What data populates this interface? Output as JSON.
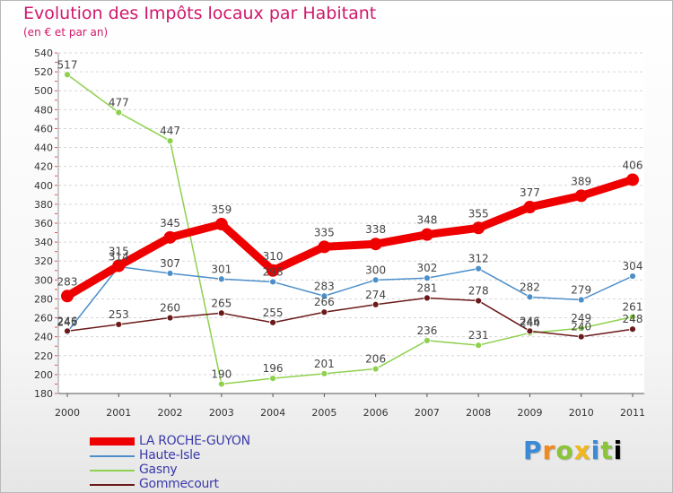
{
  "chart_data": {
    "type": "line",
    "title": "Evolution des Impôts locaux par Habitant",
    "subtitle": "(en € et par an)",
    "xlabel": "",
    "ylabel": "",
    "categories": [
      "2000",
      "2001",
      "2002",
      "2003",
      "2004",
      "2005",
      "2006",
      "2007",
      "2008",
      "2009",
      "2010",
      "2011"
    ],
    "ylim": [
      180,
      540
    ],
    "ytick_step": 20,
    "grid": "horizontal dashed",
    "legend_position": "bottom-left",
    "series": [
      {
        "name": "LA ROCHE-GUYON",
        "color": "#ee0000",
        "width": 9,
        "marker": 7,
        "values": [
          283,
          315,
          345,
          359,
          310,
          335,
          338,
          348,
          355,
          377,
          389,
          406
        ]
      },
      {
        "name": "Haute-Isle",
        "color": "#4d8fc9",
        "width": 1.5,
        "marker": 3.5,
        "values": [
          245,
          314,
          307,
          301,
          298,
          283,
          300,
          302,
          312,
          282,
          279,
          304
        ]
      },
      {
        "name": "Gasny",
        "color": "#8fd14f",
        "width": 1.5,
        "marker": 3.5,
        "values": [
          517,
          477,
          447,
          190,
          196,
          201,
          206,
          236,
          231,
          244,
          249,
          261
        ]
      },
      {
        "name": "Gommecourt",
        "color": "#6b1a1a",
        "width": 1.5,
        "marker": 3.5,
        "values": [
          246,
          253,
          260,
          265,
          255,
          266,
          274,
          281,
          278,
          246,
          240,
          248
        ]
      }
    ]
  },
  "logo": [
    "P",
    "r",
    "o",
    "x",
    "i",
    "t",
    "i"
  ]
}
